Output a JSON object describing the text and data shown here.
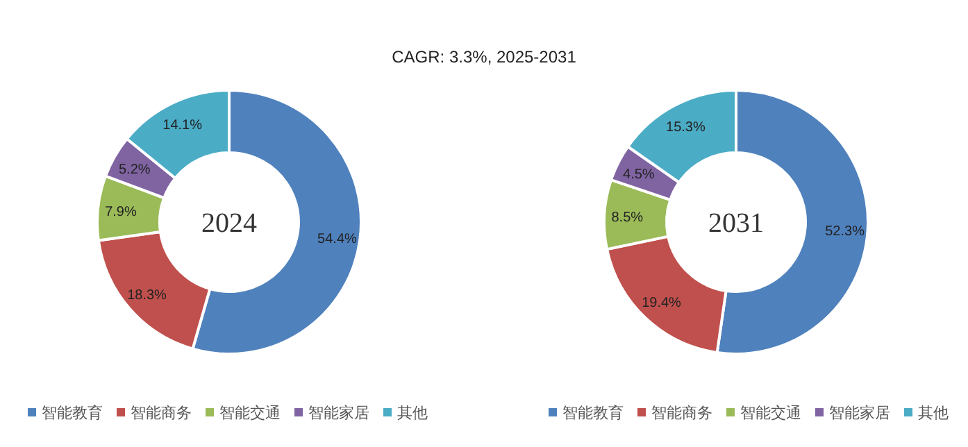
{
  "chart_data": [
    {
      "type": "donut",
      "title": "2024",
      "annotations": [
        "CAGR:   3.3%, 2025-2031"
      ],
      "categories": [
        "智能教育",
        "智能商务",
        "智能交通",
        "智能家居",
        "其他"
      ],
      "values": [
        54.4,
        18.3,
        7.9,
        5.2,
        14.1
      ],
      "value_labels": [
        "54.4%",
        "18.3%",
        "7.9%",
        "5.2%",
        "14.1%"
      ],
      "colors": [
        "#4f81bd",
        "#c0504d",
        "#9bbb59",
        "#8064a2",
        "#4bacc6"
      ],
      "legend": "bottom"
    },
    {
      "type": "donut",
      "title": "2031",
      "categories": [
        "智能教育",
        "智能商务",
        "智能交通",
        "智能家居",
        "其他"
      ],
      "values": [
        52.3,
        19.4,
        8.5,
        4.5,
        15.3
      ],
      "value_labels": [
        "52.3%",
        "19.4%",
        "8.5%",
        "4.5%",
        "15.3%"
      ],
      "colors": [
        "#4f81bd",
        "#c0504d",
        "#9bbb59",
        "#8064a2",
        "#4bacc6"
      ],
      "legend": "bottom"
    }
  ]
}
